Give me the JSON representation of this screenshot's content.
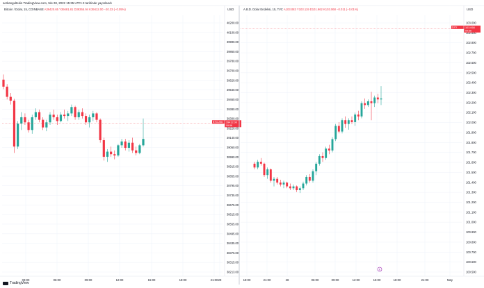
{
  "caption": "serkangultekin TradingView.com, Nis 28, 2022 15:35 UTC+3 tarihinde yayınlandı",
  "footer": {
    "brand": "TradingView"
  },
  "colors": {
    "up": "#26a69a",
    "down": "#f23645",
    "grid": "#f0f3fa",
    "axis_text": "#131722",
    "marker": "#f23645"
  },
  "chart_data": [
    {
      "type": "candlestick",
      "title": "Bitcoin / Dolar, 15, COINBASE",
      "ohlc_text": "A39420.65 Y39481.81 D39355.94 K39412.00 −20.33 (−0.05%)",
      "symbol_tag": "BTCUSD",
      "last_price": "39412.00",
      "countdown": "09:56",
      "axis_unit": "USD",
      "ylim": [
        38213,
        40260
      ],
      "y_ticks": [
        "40200.00",
        "40100.00",
        "39990.00",
        "39860.00",
        "39780.00",
        "39700.00",
        "39620.00",
        "39540.00",
        "39460.00",
        "39380.00",
        "39300.00",
        "39220.00",
        "39140.00",
        "39060.00",
        "38990.00",
        "38915.00",
        "38855.00",
        "38795.00",
        "38735.00",
        "38675.00",
        "38615.00",
        "38555.00",
        "38495.00",
        "38435.00",
        "38375.00",
        "38315.00",
        "38213.00"
      ],
      "x_ticks": [
        "03:00",
        "06:00",
        "09:00",
        "12:00",
        "15:00",
        "18:00",
        "21:00",
        "29"
      ],
      "candles": [
        [
          39755,
          39795,
          39680,
          39700
        ],
        [
          39700,
          39720,
          39600,
          39620
        ],
        [
          39620,
          39650,
          39560,
          39590
        ],
        [
          39590,
          39605,
          39180,
          39230
        ],
        [
          39230,
          39430,
          39210,
          39410
        ],
        [
          39410,
          39500,
          39360,
          39460
        ],
        [
          39460,
          39490,
          39400,
          39420
        ],
        [
          39420,
          39440,
          39340,
          39360
        ],
        [
          39360,
          39480,
          39330,
          39460
        ],
        [
          39460,
          39530,
          39440,
          39500
        ],
        [
          39500,
          39520,
          39420,
          39440
        ],
        [
          39440,
          39460,
          39360,
          39380
        ],
        [
          39380,
          39440,
          39350,
          39420
        ],
        [
          39420,
          39500,
          39400,
          39480
        ],
        [
          39480,
          39520,
          39440,
          39460
        ],
        [
          39460,
          39480,
          39400,
          39430
        ],
        [
          39430,
          39500,
          39420,
          39480
        ],
        [
          39480,
          39520,
          39450,
          39470
        ],
        [
          39470,
          39510,
          39430,
          39490
        ],
        [
          39490,
          39560,
          39470,
          39540
        ],
        [
          39540,
          39550,
          39440,
          39460
        ],
        [
          39460,
          39520,
          39440,
          39500
        ],
        [
          39500,
          39530,
          39450,
          39470
        ],
        [
          39470,
          39490,
          39400,
          39420
        ],
        [
          39420,
          39480,
          39380,
          39460
        ],
        [
          39460,
          39510,
          39430,
          39490
        ],
        [
          39490,
          39500,
          39420,
          39440
        ],
        [
          39440,
          39450,
          39260,
          39280
        ],
        [
          39280,
          39300,
          39120,
          39150
        ],
        [
          39150,
          39210,
          39110,
          39190
        ],
        [
          39190,
          39230,
          39150,
          39170
        ],
        [
          39170,
          39200,
          39130,
          39160
        ],
        [
          39160,
          39250,
          39150,
          39240
        ],
        [
          39240,
          39290,
          39220,
          39270
        ],
        [
          39270,
          39290,
          39200,
          39220
        ],
        [
          39220,
          39280,
          39190,
          39260
        ],
        [
          39260,
          39300,
          39180,
          39200
        ],
        [
          39200,
          39230,
          39160,
          39180
        ],
        [
          39180,
          39250,
          39170,
          39240
        ],
        [
          39240,
          39450,
          39230,
          39290
        ]
      ]
    },
    {
      "type": "candlestick",
      "title": "A.B.D. Dolar Endeksi, 15, TVC",
      "ohlc_text": "A103.083 Y103.119 D101.962 K103.068 −0.011 (−0.01%)",
      "symbol_tag": "DXY",
      "last_price": "103.068",
      "countdown": "09:56",
      "axis_unit": "USD",
      "ylim": [
        100.45,
        103.21
      ],
      "y_ticks": [
        "103.000",
        "102.900",
        "102.800",
        "102.700",
        "102.600",
        "102.500",
        "102.400",
        "102.300",
        "102.200",
        "102.100",
        "102.000",
        "101.900",
        "101.800",
        "101.700",
        "101.600",
        "101.500",
        "101.400",
        "101.300",
        "101.200",
        "101.100",
        "101.000",
        "100.900",
        "100.800",
        "100.700",
        "100.600",
        "100.500"
      ],
      "x_ticks": [
        "18:00",
        "21:00",
        "28",
        "06:00",
        "09:00",
        "12:00",
        "15:00",
        "18:00",
        "21:00",
        "May"
      ],
      "event_marker": "E",
      "candles": [
        [
          101.64,
          101.66,
          101.58,
          101.6
        ],
        [
          101.6,
          101.68,
          101.58,
          101.66
        ],
        [
          101.66,
          101.7,
          101.62,
          101.64
        ],
        [
          101.64,
          101.65,
          101.5,
          101.52
        ],
        [
          101.52,
          101.6,
          101.48,
          101.58
        ],
        [
          101.58,
          101.59,
          101.44,
          101.46
        ],
        [
          101.46,
          101.5,
          101.4,
          101.48
        ],
        [
          101.48,
          101.5,
          101.42,
          101.44
        ],
        [
          101.44,
          101.47,
          101.4,
          101.42
        ],
        [
          101.42,
          101.46,
          101.38,
          101.44
        ],
        [
          101.44,
          101.45,
          101.38,
          101.4
        ],
        [
          101.4,
          101.43,
          101.36,
          101.38
        ],
        [
          101.38,
          101.42,
          101.36,
          101.4
        ],
        [
          101.4,
          101.41,
          101.34,
          101.36
        ],
        [
          101.36,
          101.4,
          101.33,
          101.38
        ],
        [
          101.38,
          101.45,
          101.36,
          101.43
        ],
        [
          101.43,
          101.52,
          101.41,
          101.5
        ],
        [
          101.5,
          101.53,
          101.44,
          101.46
        ],
        [
          101.46,
          101.58,
          101.44,
          101.56
        ],
        [
          101.56,
          101.66,
          101.52,
          101.64
        ],
        [
          101.64,
          101.74,
          101.62,
          101.72
        ],
        [
          101.72,
          101.76,
          101.66,
          101.7
        ],
        [
          101.7,
          101.82,
          101.68,
          101.8
        ],
        [
          101.8,
          101.84,
          101.74,
          101.78
        ],
        [
          101.78,
          101.92,
          101.76,
          101.9
        ],
        [
          101.9,
          102.06,
          101.88,
          102.04
        ],
        [
          102.04,
          102.08,
          101.96,
          101.98
        ],
        [
          101.98,
          102.12,
          101.96,
          102.1
        ],
        [
          102.1,
          102.14,
          102.02,
          102.06
        ],
        [
          102.06,
          102.12,
          102.0,
          102.1
        ],
        [
          102.1,
          102.14,
          102.06,
          102.08
        ],
        [
          102.08,
          102.18,
          102.04,
          102.16
        ],
        [
          102.16,
          102.2,
          102.1,
          102.14
        ],
        [
          102.14,
          102.3,
          102.12,
          102.28
        ],
        [
          102.28,
          102.33,
          102.22,
          102.26
        ],
        [
          102.26,
          102.32,
          102.24,
          102.3
        ],
        [
          102.3,
          102.4,
          102.1,
          102.28
        ],
        [
          102.28,
          102.36,
          102.24,
          102.34
        ],
        [
          102.34,
          102.38,
          102.28,
          102.32
        ],
        [
          102.32,
          102.46,
          102.26,
          102.33
        ]
      ]
    }
  ]
}
